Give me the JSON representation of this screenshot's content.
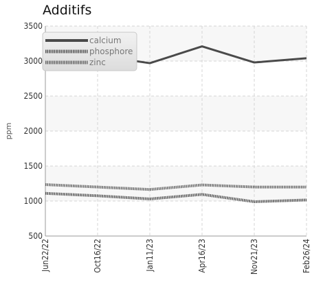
{
  "chart_data": {
    "type": "line",
    "title": "Additifs",
    "xlabel": "",
    "ylabel": "ppm",
    "x": [
      "Jun22/22",
      "Oct16/22",
      "Jan11/23",
      "Apr16/23",
      "Nov21/23",
      "Feb26/24"
    ],
    "ylim": [
      500,
      3500
    ],
    "yticks": [
      500,
      1000,
      1500,
      2000,
      2500,
      3000,
      3500
    ],
    "grid": true,
    "legend_position": "top-left",
    "series": [
      {
        "name": "calcium",
        "color": "#4a4a4a",
        "style": "solid",
        "values": [
          3100,
          3080,
          2970,
          3210,
          2980,
          3040
        ]
      },
      {
        "name": "phosphore",
        "color": "#555555",
        "style": "dotted",
        "values": [
          1110,
          1075,
          1030,
          1095,
          990,
          1015
        ]
      },
      {
        "name": "zinc",
        "color": "#666666",
        "style": "dotted",
        "values": [
          1235,
          1200,
          1165,
          1230,
          1200,
          1200
        ]
      }
    ]
  }
}
